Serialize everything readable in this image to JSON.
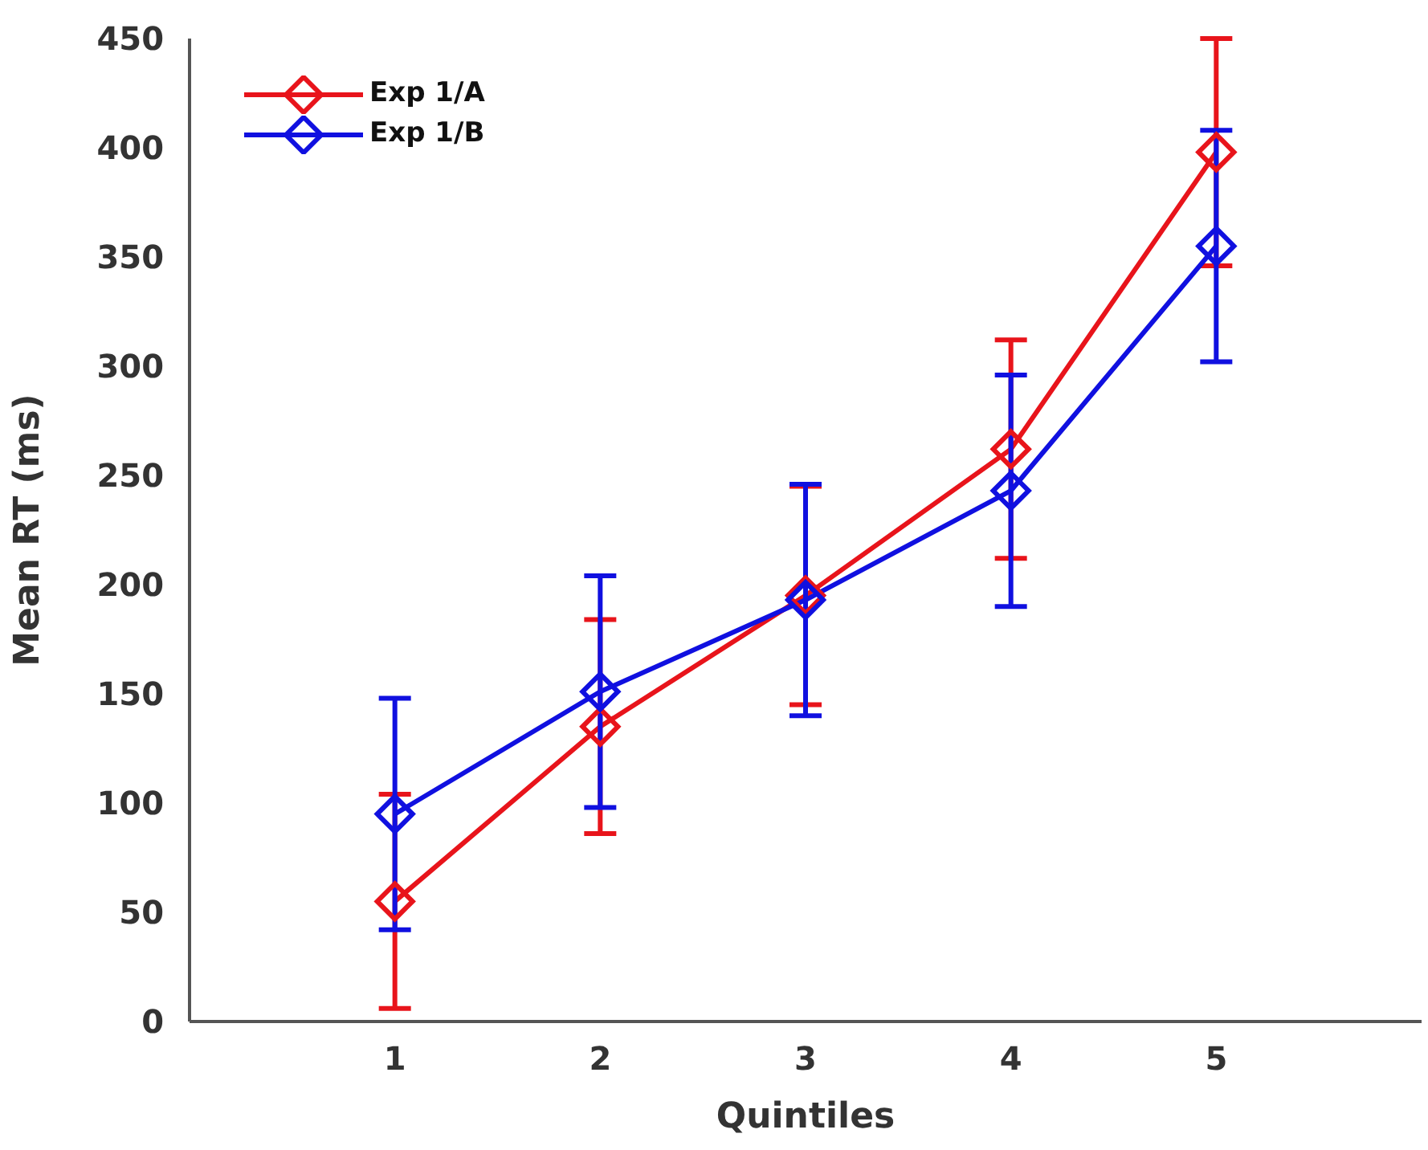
{
  "chart_data": {
    "type": "line",
    "xlabel": "Quintiles",
    "ylabel": "Mean RT (ms)",
    "x": [
      1,
      2,
      3,
      4,
      5
    ],
    "series": [
      {
        "name": "Exp 1/A",
        "color": "#e8141b",
        "values": [
          55,
          135,
          195,
          262,
          398
        ],
        "errors": [
          49,
          49,
          50,
          50,
          52
        ]
      },
      {
        "name": "Exp 1/B",
        "color": "#1010e0",
        "values": [
          95,
          151,
          193,
          243,
          355
        ],
        "errors": [
          53,
          53,
          53,
          53,
          53
        ]
      }
    ],
    "xlim": [
      0,
      6
    ],
    "xticks": [
      1,
      2,
      3,
      4,
      5
    ],
    "ylim": [
      0,
      450
    ],
    "yticks": [
      0,
      50,
      100,
      150,
      200,
      250,
      300,
      350,
      400,
      450
    ],
    "marker": "diamond",
    "legend": "top left",
    "grid": false
  }
}
